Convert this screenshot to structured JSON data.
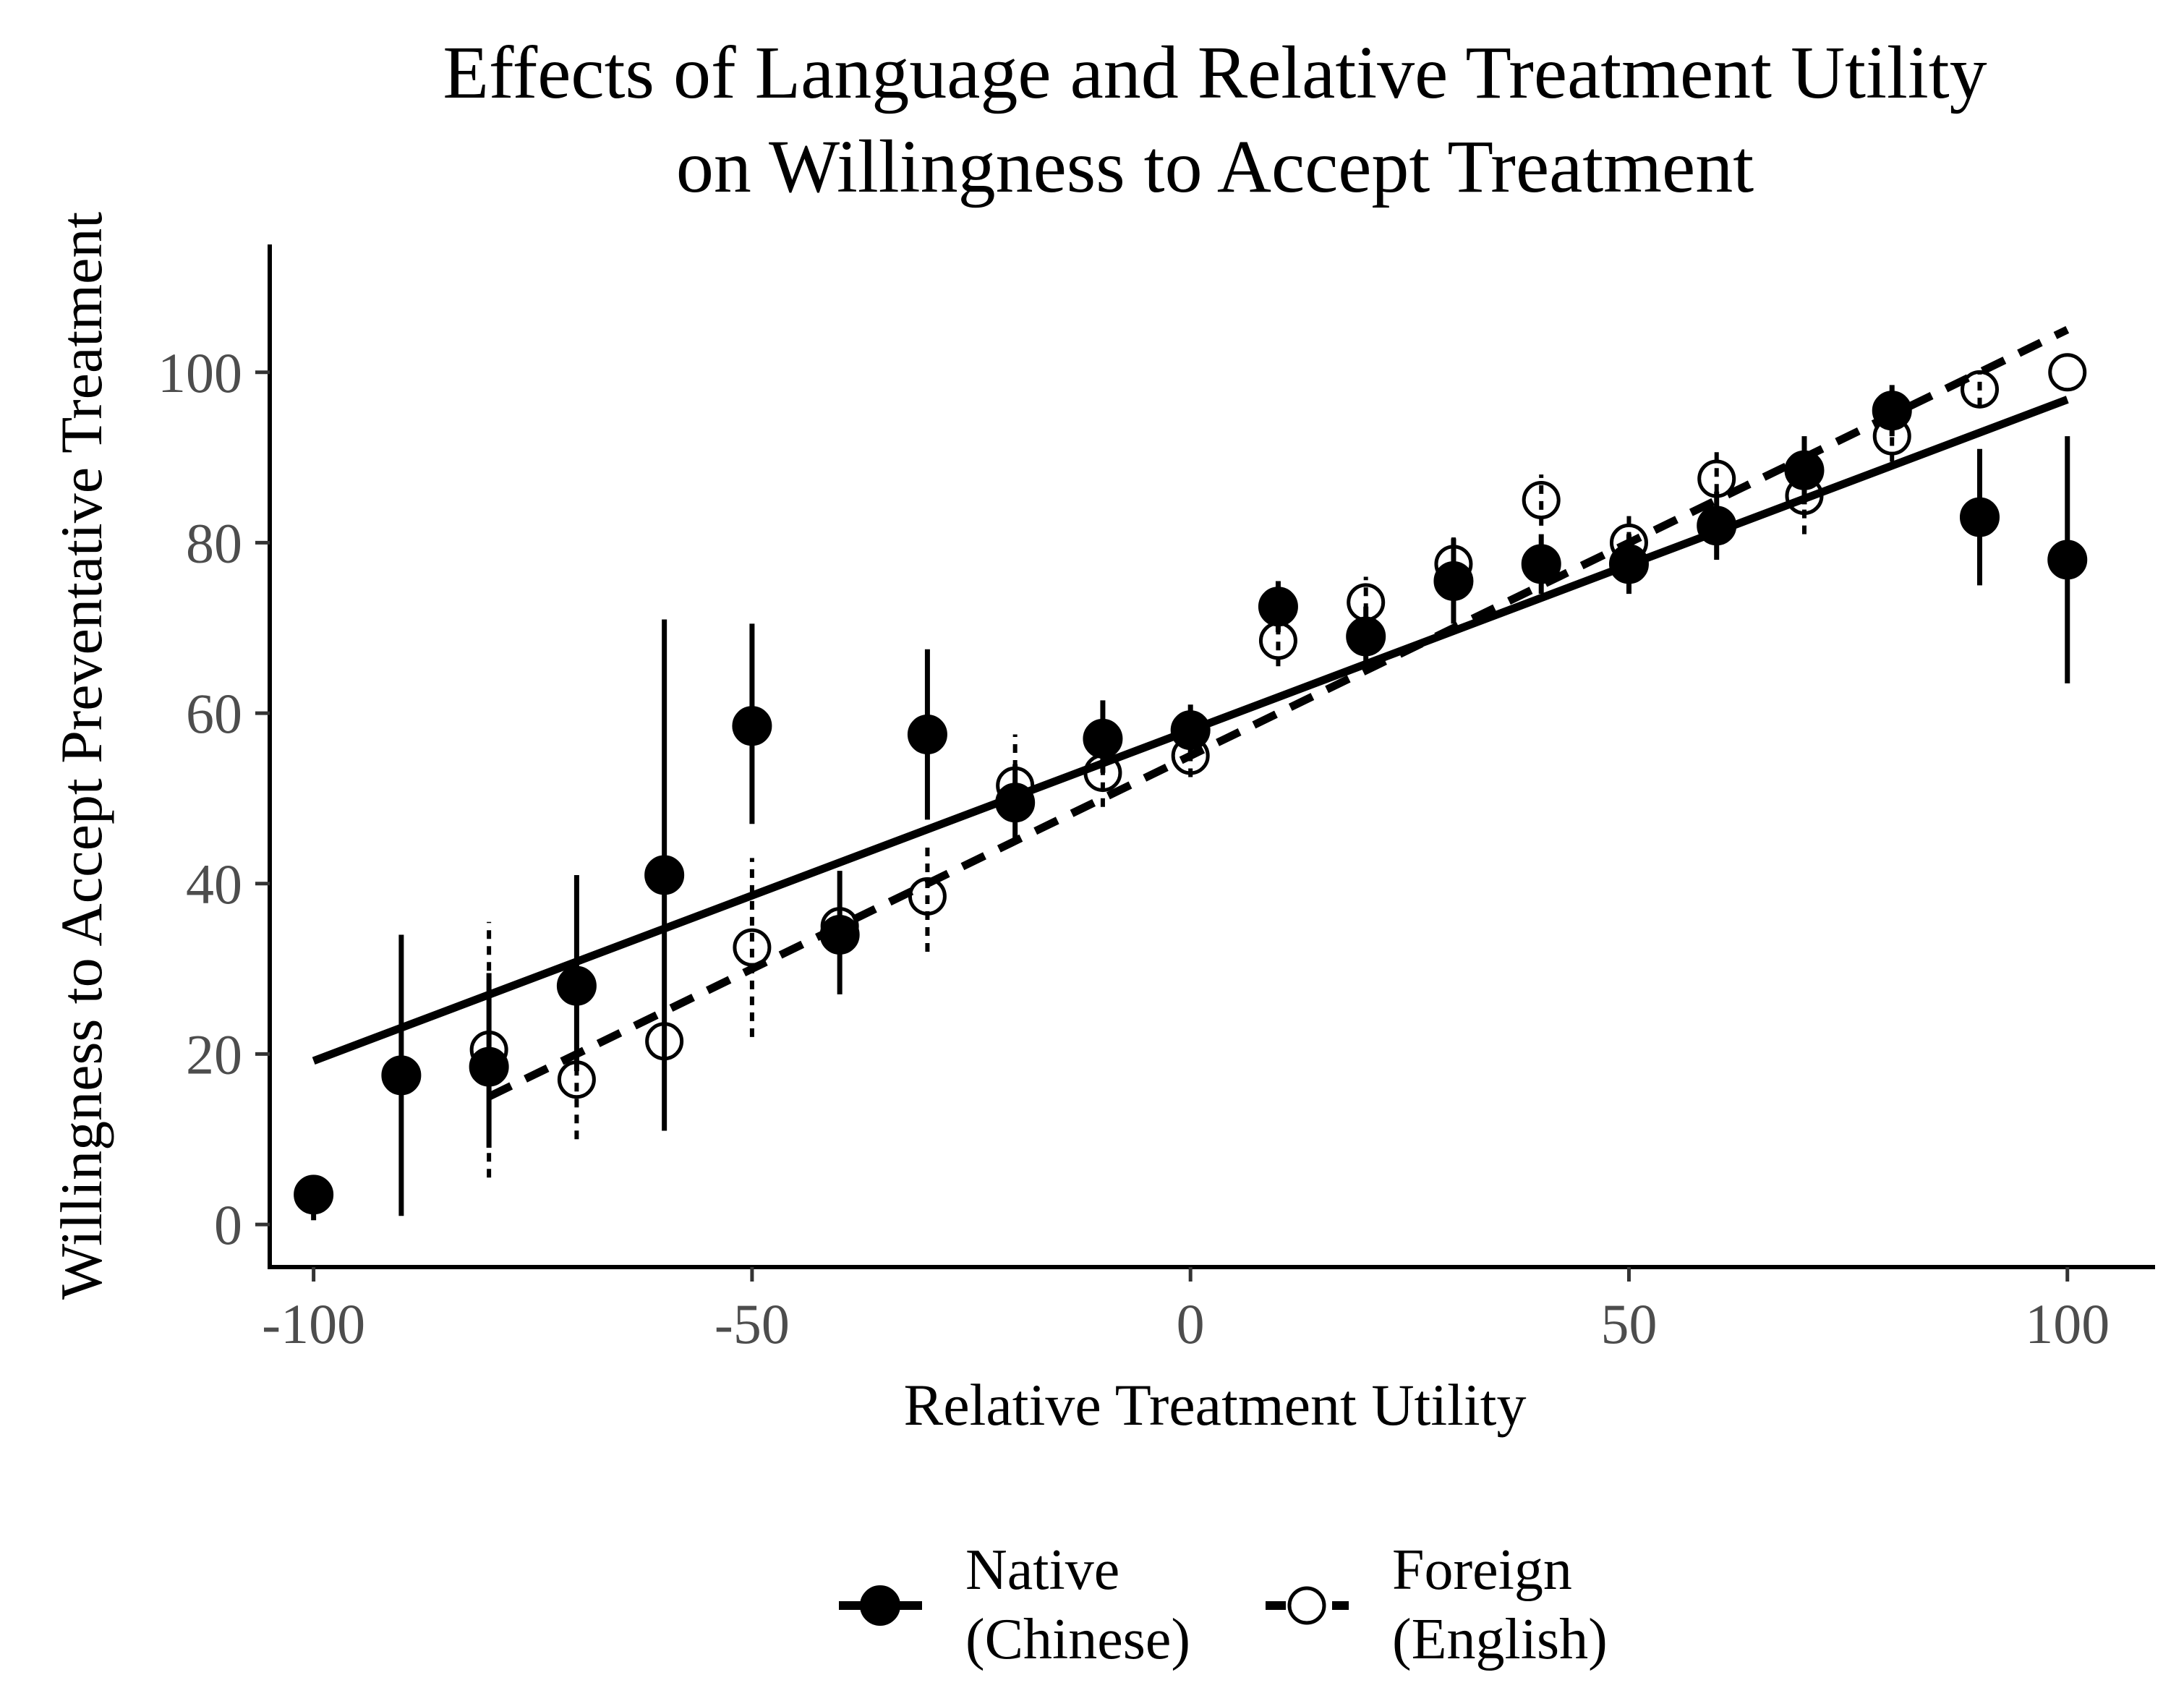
{
  "chart_data": {
    "type": "scatter",
    "title": [
      "Effects of Language and Relative Treatment Utility",
      "on Willingness to Accept Treatment"
    ],
    "xlabel": "Relative Treatment Utility",
    "ylabel": "Willingness to Accept Preventative Treatment",
    "xlim": [
      -105,
      110
    ],
    "ylim": [
      -5,
      115
    ],
    "xticks": [
      -100,
      -50,
      0,
      50,
      100
    ],
    "xtick_labels": [
      "-100",
      "-50",
      "0",
      "50",
      "100"
    ],
    "yticks": [
      0,
      20,
      40,
      60,
      80,
      100
    ],
    "ytick_labels": [
      "0",
      "20",
      "40",
      "60",
      "80",
      "100"
    ],
    "grid": false,
    "legend_position": "bottom",
    "series": [
      {
        "name": "Native (Chinese)",
        "legend_lines": [
          "Native",
          "(Chinese)"
        ],
        "marker": "filled-circle",
        "line_style": "solid",
        "fit_line": {
          "x": [
            -100,
            100
          ],
          "y": [
            19.2,
            96.8
          ]
        },
        "points": [
          {
            "x": -100,
            "y": 3.5,
            "lo": 0.5,
            "hi": 3.5
          },
          {
            "x": -90,
            "y": 17.5,
            "lo": 1.0,
            "hi": 34.0
          },
          {
            "x": -80,
            "y": 18.5,
            "lo": 9.0,
            "hi": 29.5
          },
          {
            "x": -70,
            "y": 28.0,
            "lo": 18.0,
            "hi": 41.0
          },
          {
            "x": -60,
            "y": 41.0,
            "lo": 11.0,
            "hi": 71.0
          },
          {
            "x": -50,
            "y": 58.5,
            "lo": 47.0,
            "hi": 70.5
          },
          {
            "x": -40,
            "y": 34.0,
            "lo": 27.0,
            "hi": 41.5
          },
          {
            "x": -30,
            "y": 57.5,
            "lo": 47.5,
            "hi": 67.5
          },
          {
            "x": -20,
            "y": 49.5,
            "lo": 45.0,
            "hi": 54.0
          },
          {
            "x": -10,
            "y": 57.0,
            "lo": 53.0,
            "hi": 61.5
          },
          {
            "x": 0,
            "y": 58.0,
            "lo": 55.0,
            "hi": 61.0
          },
          {
            "x": 10,
            "y": 72.5,
            "lo": 69.5,
            "hi": 75.5
          },
          {
            "x": 20,
            "y": 69.0,
            "lo": 65.5,
            "hi": 72.5
          },
          {
            "x": 30,
            "y": 75.5,
            "lo": 70.5,
            "hi": 80.5
          },
          {
            "x": 40,
            "y": 77.5,
            "lo": 74.0,
            "hi": 81.0
          },
          {
            "x": 50,
            "y": 77.5,
            "lo": 74.0,
            "hi": 81.0
          },
          {
            "x": 60,
            "y": 82.0,
            "lo": 78.0,
            "hi": 86.0
          },
          {
            "x": 70,
            "y": 88.5,
            "lo": 84.5,
            "hi": 92.5
          },
          {
            "x": 80,
            "y": 95.5,
            "lo": 92.5,
            "hi": 98.5
          },
          {
            "x": 90,
            "y": 83.0,
            "lo": 75.0,
            "hi": 91.0
          },
          {
            "x": 100,
            "y": 78.0,
            "lo": 63.5,
            "hi": 92.5
          }
        ]
      },
      {
        "name": "Foreign (English)",
        "legend_lines": [
          "Foreign",
          "(English)"
        ],
        "marker": "open-circle",
        "line_style": "dashed",
        "fit_line": {
          "x": [
            -80,
            100
          ],
          "y": [
            15.0,
            105.0
          ]
        },
        "points": [
          {
            "x": -80,
            "y": 20.5,
            "lo": 5.5,
            "hi": 35.5
          },
          {
            "x": -70,
            "y": 17.0,
            "lo": 10.0,
            "hi": 24.0
          },
          {
            "x": -60,
            "y": 21.5,
            "lo": 12.0,
            "hi": 31.0
          },
          {
            "x": -50,
            "y": 32.5,
            "lo": 22.0,
            "hi": 43.0
          },
          {
            "x": -40,
            "y": 35.0,
            "lo": 28.5,
            "hi": 41.5
          },
          {
            "x": -30,
            "y": 38.5,
            "lo": 32.0,
            "hi": 45.0
          },
          {
            "x": -20,
            "y": 51.5,
            "lo": 46.0,
            "hi": 57.5
          },
          {
            "x": -10,
            "y": 53.0,
            "lo": 49.0,
            "hi": 57.0
          },
          {
            "x": 0,
            "y": 55.0,
            "lo": 52.5,
            "hi": 57.5
          },
          {
            "x": 10,
            "y": 68.5,
            "lo": 65.5,
            "hi": 71.5
          },
          {
            "x": 20,
            "y": 73.0,
            "lo": 70.0,
            "hi": 76.0
          },
          {
            "x": 30,
            "y": 77.5,
            "lo": 74.0,
            "hi": 81.0
          },
          {
            "x": 40,
            "y": 85.0,
            "lo": 82.0,
            "hi": 88.0
          },
          {
            "x": 50,
            "y": 80.0,
            "lo": 76.5,
            "hi": 83.5
          },
          {
            "x": 60,
            "y": 87.5,
            "lo": 84.0,
            "hi": 91.0
          },
          {
            "x": 70,
            "y": 85.5,
            "lo": 81.0,
            "hi": 90.0
          },
          {
            "x": 80,
            "y": 92.5,
            "lo": 89.5,
            "hi": 95.5
          },
          {
            "x": 90,
            "y": 98.0,
            "lo": 96.0,
            "hi": 100.0
          },
          {
            "x": 100,
            "y": 100.0,
            "lo": 100.0,
            "hi": 100.0
          }
        ]
      }
    ]
  },
  "colors": {
    "ink": "#000000",
    "tick_text": "#4d4d4d",
    "background": "#ffffff"
  }
}
